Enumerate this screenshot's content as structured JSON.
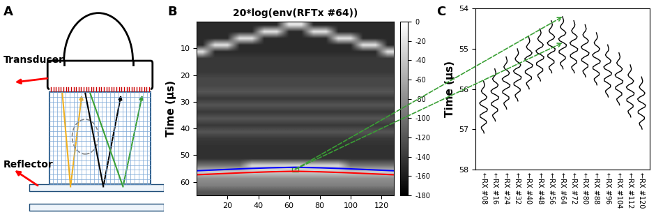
{
  "panel_labels": [
    "A",
    "B",
    "C"
  ],
  "diagram": {
    "labels": [
      "Transducer",
      "Reflector"
    ]
  },
  "chart_data": [
    {
      "type": "heatmap",
      "title": "20*log(env(RFTx #64))",
      "y_label": "Time (µs)",
      "xlim": [
        0,
        128
      ],
      "xticks": [
        20,
        40,
        60,
        80,
        100,
        120
      ],
      "ylim": [
        65,
        0
      ],
      "yticks": [
        10,
        20,
        30,
        40,
        50,
        60
      ],
      "cells": [
        [
          -150,
          -150,
          -150,
          -150,
          -150,
          -150,
          -150,
          -20,
          -20,
          -150,
          -150,
          -150,
          -150,
          -150,
          -150,
          -150
        ],
        [
          -150,
          -150,
          -150,
          -150,
          -150,
          -20,
          -20,
          -150,
          -150,
          -20,
          -20,
          -150,
          -150,
          -150,
          -150,
          -150
        ],
        [
          -150,
          -150,
          -150,
          -20,
          -20,
          -150,
          -150,
          -150,
          -150,
          -150,
          -150,
          -20,
          -20,
          -150,
          -150,
          -150
        ],
        [
          -150,
          -20,
          -20,
          -150,
          -150,
          -150,
          -150,
          -150,
          -150,
          -150,
          -150,
          -150,
          -150,
          -20,
          -20,
          -150
        ],
        [
          -20,
          -150,
          -150,
          -150,
          -150,
          -150,
          -150,
          -150,
          -150,
          -150,
          -150,
          -150,
          -150,
          -150,
          -150,
          -20
        ],
        [
          -140,
          -140,
          -140,
          -140,
          -140,
          -140,
          -140,
          -140,
          -140,
          -140,
          -140,
          -140,
          -140,
          -140,
          -140,
          -140
        ],
        [
          -140,
          -140,
          -140,
          -140,
          -140,
          -140,
          -140,
          -140,
          -140,
          -140,
          -140,
          -140,
          -140,
          -140,
          -140,
          -140
        ],
        [
          -140,
          -140,
          -140,
          -140,
          -140,
          -140,
          -140,
          -140,
          -140,
          -140,
          -140,
          -140,
          -140,
          -140,
          -140,
          -140
        ],
        [
          -130,
          -130,
          -130,
          -130,
          -130,
          -130,
          -130,
          -130,
          -130,
          -130,
          -130,
          -130,
          -130,
          -130,
          -130,
          -130
        ],
        [
          -130,
          -130,
          -130,
          -130,
          -130,
          -130,
          -130,
          -130,
          -130,
          -130,
          -130,
          -130,
          -130,
          -130,
          -130,
          -130
        ],
        [
          -120,
          -120,
          -120,
          -120,
          -120,
          -120,
          -120,
          -120,
          -120,
          -120,
          -120,
          -120,
          -120,
          -120,
          -120,
          -120
        ],
        [
          -140,
          -140,
          -140,
          -140,
          -140,
          -140,
          -140,
          -140,
          -140,
          -140,
          -140,
          -140,
          -140,
          -140,
          -140,
          -140
        ],
        [
          -120,
          -120,
          -120,
          -120,
          -120,
          -120,
          -120,
          -120,
          -120,
          -120,
          -120,
          -120,
          -120,
          -120,
          -120,
          -120
        ],
        [
          -140,
          -140,
          -140,
          -140,
          -140,
          -140,
          -140,
          -140,
          -140,
          -140,
          -140,
          -140,
          -140,
          -140,
          -140,
          -140
        ],
        [
          -120,
          -120,
          -120,
          -120,
          -120,
          -120,
          -120,
          -120,
          -120,
          -120,
          -120,
          -120,
          -120,
          -120,
          -120,
          -120
        ],
        [
          -140,
          -140,
          -140,
          -140,
          -140,
          -140,
          -140,
          -140,
          -140,
          -140,
          -140,
          -140,
          -140,
          -140,
          -140,
          -140
        ],
        [
          -120,
          -120,
          -120,
          -120,
          -120,
          -120,
          -120,
          -120,
          -120,
          -120,
          -120,
          -120,
          -120,
          -120,
          -120,
          -120
        ],
        [
          -140,
          -140,
          -140,
          -140,
          -140,
          -140,
          -140,
          -140,
          -140,
          -140,
          -140,
          -140,
          -140,
          -140,
          -140,
          -140
        ],
        [
          -145,
          -145,
          -145,
          -145,
          -145,
          -145,
          -145,
          -145,
          -145,
          -145,
          -145,
          -145,
          -145,
          -145,
          -145,
          -145
        ],
        [
          -145,
          -145,
          -145,
          -145,
          -145,
          -145,
          -145,
          -145,
          -145,
          -145,
          -145,
          -145,
          -145,
          -145,
          -145,
          -145
        ],
        [
          -145,
          -145,
          -145,
          -145,
          -145,
          -145,
          -145,
          -145,
          -145,
          -145,
          -145,
          -145,
          -145,
          -145,
          -145,
          -145
        ],
        [
          -100,
          -100,
          -100,
          -100,
          -30,
          -30,
          -30,
          -30,
          -30,
          -30,
          -30,
          -30,
          -100,
          -100,
          -100,
          -100
        ],
        [
          -35,
          -35,
          -35,
          -35,
          -35,
          -35,
          -35,
          -35,
          -35,
          -35,
          -35,
          -35,
          -35,
          -35,
          -35,
          -35
        ],
        [
          -80,
          -80,
          -80,
          -80,
          -80,
          -80,
          -80,
          -80,
          -80,
          -80,
          -80,
          -80,
          -80,
          -80,
          -80,
          -80
        ],
        [
          -90,
          -90,
          -90,
          -90,
          -90,
          -90,
          -90,
          -90,
          -90,
          -90,
          -90,
          -90,
          -90,
          -90,
          -90,
          -90
        ],
        [
          -120,
          -120,
          -120,
          -120,
          -120,
          -120,
          -120,
          -120,
          -120,
          -120,
          -120,
          -120,
          -120,
          -120,
          -120,
          -120
        ]
      ],
      "colorbar": {
        "range": [
          -180,
          0
        ],
        "ticks": [
          0,
          -20,
          -40,
          -60,
          -80,
          -100,
          -120,
          -140,
          -160,
          -180
        ]
      },
      "series": [
        {
          "color": "#0000ff",
          "x": [
            0,
            16,
            32,
            48,
            64,
            80,
            96,
            112,
            128
          ],
          "values": [
            55.8,
            55.4,
            55.0,
            54.7,
            54.5,
            54.7,
            55.0,
            55.4,
            55.8
          ]
        },
        {
          "color": "#ff0000",
          "x": [
            0,
            16,
            32,
            48,
            64,
            80,
            96,
            112,
            128
          ],
          "values": [
            57.3,
            56.9,
            56.5,
            56.2,
            56.0,
            56.2,
            56.5,
            56.9,
            57.3
          ]
        }
      ]
    },
    {
      "type": "line",
      "y_label": "Time (µs)",
      "color": "#000000",
      "categories": [
        "←RX #08",
        "←RX #16",
        "←RX #24",
        "←RX #32",
        "←RX #40",
        "←RX #48",
        "←RX #56",
        "←RX #64",
        "←RX #72",
        "←RX #80",
        "←RX #88",
        "←RX #96",
        "←RX #104",
        "←RX #112",
        "←RX #120"
      ],
      "values": [
        55.8,
        55.5,
        55.2,
        55.0,
        54.7,
        54.5,
        54.3,
        54.2,
        54.3,
        54.4,
        54.6,
        54.9,
        55.1,
        55.4,
        55.7
      ],
      "wavelet": {
        "time": [
          0,
          0.05,
          0.1,
          0.15,
          0.2,
          0.25,
          0.3,
          0.35,
          0.4,
          0.45,
          0.5,
          0.55,
          0.6,
          0.65,
          0.7,
          0.75,
          0.8,
          0.85,
          0.9,
          0.95,
          1.0,
          1.05,
          1.1,
          1.15,
          1.2,
          1.25,
          1.3
        ],
        "amplitude": [
          0,
          0.05,
          0.1,
          0.05,
          -0.1,
          -0.2,
          -0.1,
          0.15,
          0.3,
          0.2,
          -0.15,
          -0.35,
          -0.25,
          0.1,
          0.35,
          0.3,
          -0.05,
          -0.3,
          -0.3,
          0,
          0.25,
          0.25,
          0,
          -0.2,
          -0.15,
          0,
          0.05
        ]
      },
      "ylim": [
        58,
        54
      ],
      "yticks": [
        54,
        55,
        56,
        57,
        58
      ]
    }
  ]
}
